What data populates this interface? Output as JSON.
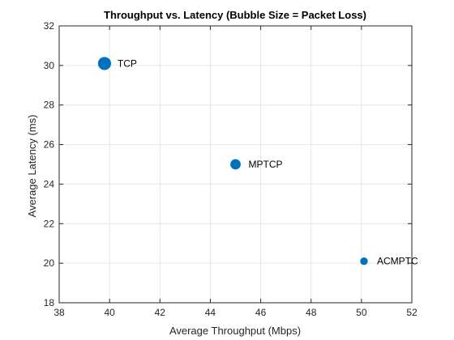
{
  "chart_data": {
    "type": "scatter",
    "title": "Throughput vs. Latency (Bubble Size = Packet Loss)",
    "xlabel": "Average Throughput (Mbps)",
    "ylabel": "Average Latency (ms)",
    "xlim": [
      38,
      52
    ],
    "ylim": [
      18,
      32
    ],
    "xticks": [
      38,
      40,
      42,
      44,
      46,
      48,
      50,
      52
    ],
    "yticks": [
      18,
      20,
      22,
      24,
      26,
      28,
      30,
      32
    ],
    "grid": true,
    "marker_color": "#0072BD",
    "points": [
      {
        "label": "TCP",
        "x": 39.8,
        "y": 30.1,
        "size": 3.0
      },
      {
        "label": "MPTCP",
        "x": 45.0,
        "y": 25.0,
        "size": 2.0
      },
      {
        "label": "ACMPTC",
        "x": 50.1,
        "y": 20.1,
        "size": 1.0
      }
    ]
  }
}
